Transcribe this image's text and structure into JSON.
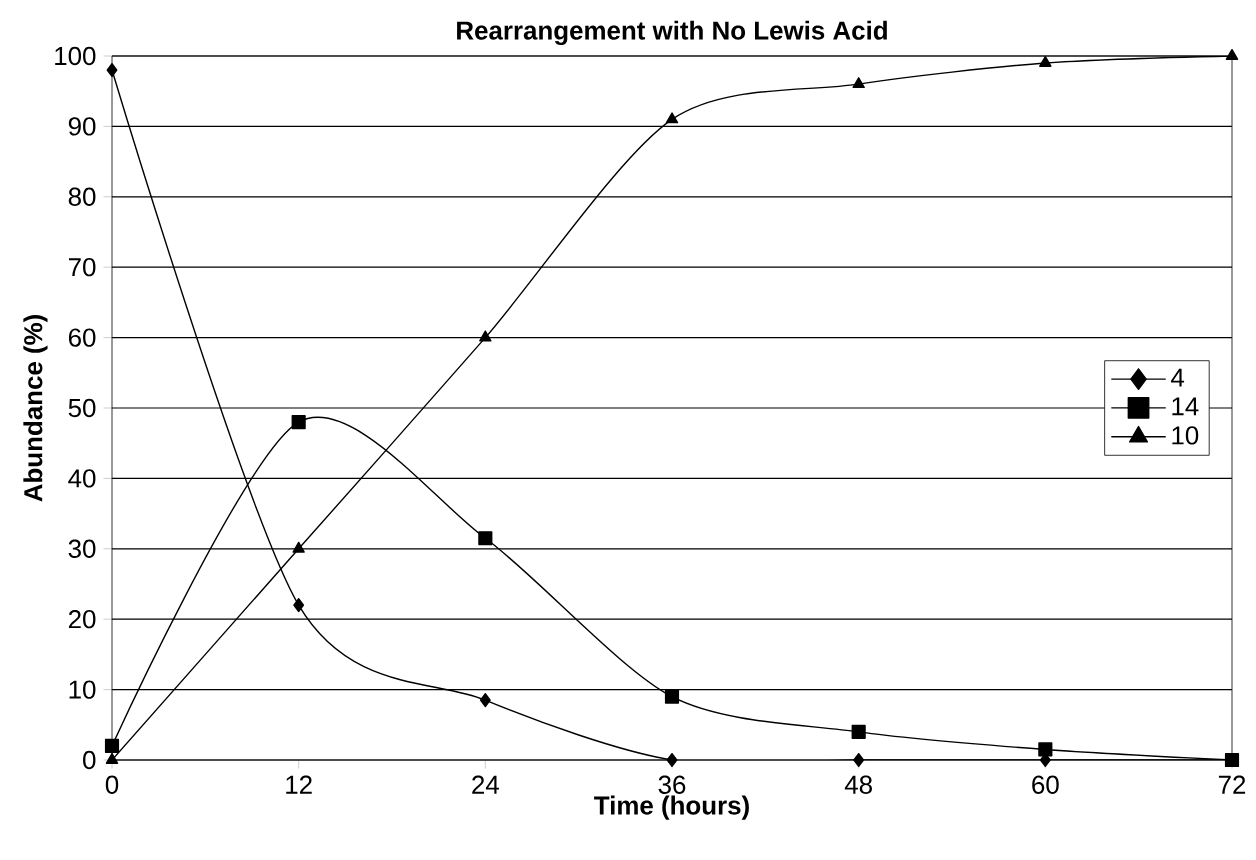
{
  "chart_data": {
    "type": "line",
    "title": "Rearrangement with No Lewis Acid",
    "xlabel": "Time (hours)",
    "ylabel": "Abundance (%)",
    "x": [
      0,
      12,
      24,
      36,
      48,
      60,
      72
    ],
    "series": [
      {
        "name": "4",
        "color": "#000000",
        "marker": "diamond",
        "values": [
          98,
          22,
          8.5,
          0,
          0,
          0,
          0
        ]
      },
      {
        "name": "14",
        "color": "#000000",
        "marker": "square",
        "values": [
          2,
          48,
          31.5,
          9,
          4,
          1.5,
          0
        ]
      },
      {
        "name": "10",
        "color": "#000000",
        "marker": "triangle",
        "values": [
          0,
          30,
          60,
          91,
          96,
          99,
          100
        ]
      }
    ],
    "xlim": [
      0,
      72
    ],
    "xticks": [
      0,
      12,
      24,
      36,
      48,
      60,
      72
    ],
    "ylim": [
      0,
      100
    ],
    "yticks": [
      0,
      10,
      20,
      30,
      40,
      50,
      60,
      70,
      80,
      90,
      100
    ],
    "grid": "y",
    "legend": "right",
    "line_style": "solid"
  }
}
